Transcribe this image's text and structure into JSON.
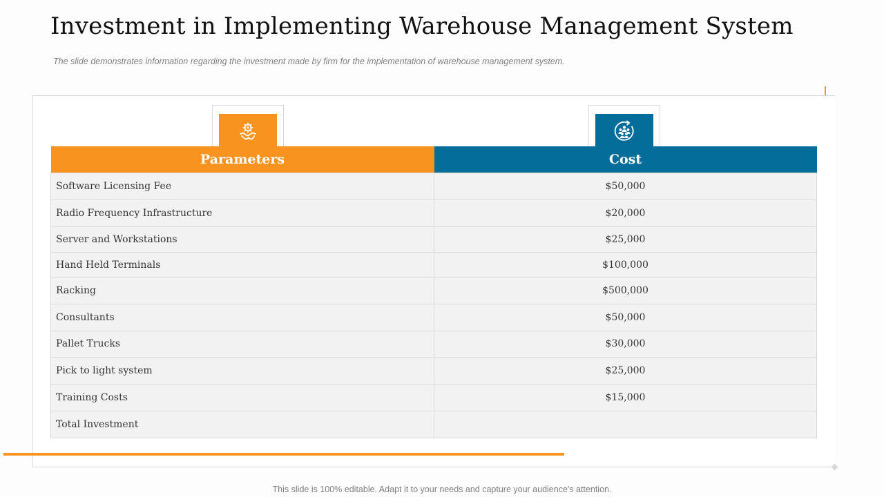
{
  "slide": {
    "title": "Investment in Implementing Warehouse Management System",
    "subtitle": "The slide demonstrates information regarding the investment made by firm for the implementation of warehouse management system.",
    "footer": "This slide is 100% editable. Adapt it to your needs and capture your audience's attention."
  },
  "icons": {
    "parameters": "gear-handshake-icon",
    "cost": "team-cycle-icon"
  },
  "colors": {
    "accent_orange": "#f7931e",
    "accent_blue": "#046d99",
    "row_fill": "#f2f2f2"
  },
  "table": {
    "headers": {
      "parameters": "Parameters",
      "cost": "Cost"
    },
    "rows": [
      {
        "parameter": "Software Licensing Fee",
        "cost": "$50,000"
      },
      {
        "parameter": "Radio Frequency Infrastructure",
        "cost": "$20,000"
      },
      {
        "parameter": "Server and Workstations",
        "cost": "$25,000"
      },
      {
        "parameter": "Hand Held Terminals",
        "cost": "$100,000"
      },
      {
        "parameter": "Racking",
        "cost": "$500,000"
      },
      {
        "parameter": "Consultants",
        "cost": "$50,000"
      },
      {
        "parameter": "Pallet Trucks",
        "cost": "$30,000"
      },
      {
        "parameter": "Pick to light system",
        "cost": "$25,000"
      },
      {
        "parameter": "Training Costs",
        "cost": "$15,000"
      },
      {
        "parameter": "Total Investment",
        "cost": ""
      }
    ]
  }
}
